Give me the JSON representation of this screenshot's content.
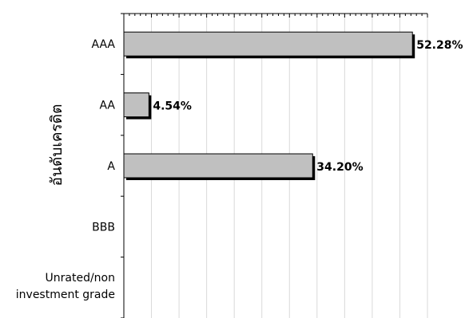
{
  "chart_data": {
    "type": "bar",
    "orientation": "horizontal",
    "categories": [
      "AAA",
      "AA",
      "A",
      "BBB",
      "Unrated/non investment grade"
    ],
    "category_lines": [
      [
        "AAA"
      ],
      [
        "AA"
      ],
      [
        "A"
      ],
      [
        "BBB"
      ],
      [
        "Unrated/non",
        "investment grade"
      ]
    ],
    "values": [
      52.28,
      4.54,
      34.2,
      0,
      0
    ],
    "value_labels": [
      "52.28%",
      "4.54%",
      "34.20%",
      "",
      ""
    ],
    "ylabel": "อันดับเครดิต",
    "xlim": [
      0,
      55
    ],
    "grid": true,
    "bar_color": "#c0c0c0",
    "bar_shadow_color": "#000000",
    "gridline_color": "#d9d9d9"
  }
}
